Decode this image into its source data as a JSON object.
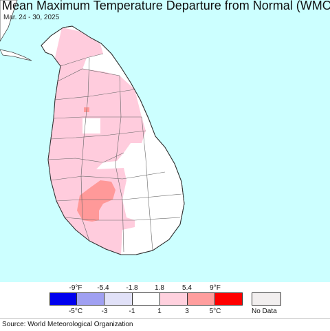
{
  "title": "Mean Maximum Temperature Departure from Normal (WMO)",
  "subtitle": "Mar. 24 - 30, 2025",
  "colors": {
    "ocean": "#ccffff",
    "land_white": "#ffffff",
    "land_pink": "#ffccdd",
    "land_salmon": "#ff9999",
    "outline": "#555555"
  },
  "legend": {
    "top_labels": [
      "-9°F",
      "-5.4",
      "-1.8",
      "1.8",
      "5.4",
      "9°F"
    ],
    "bottom_labels": [
      "-5°C",
      "-3",
      "-1",
      "1",
      "3",
      "5°C"
    ],
    "swatches": [
      "#0000ee",
      "#a0a0f2",
      "#e1e1f8",
      "#ffffff",
      "#ffd1de",
      "#ff9e9e",
      "#ff0000"
    ],
    "no_data_label": "No Data",
    "no_data_color": "#f2efef"
  },
  "source": "Source: World Meteorological Organization"
}
